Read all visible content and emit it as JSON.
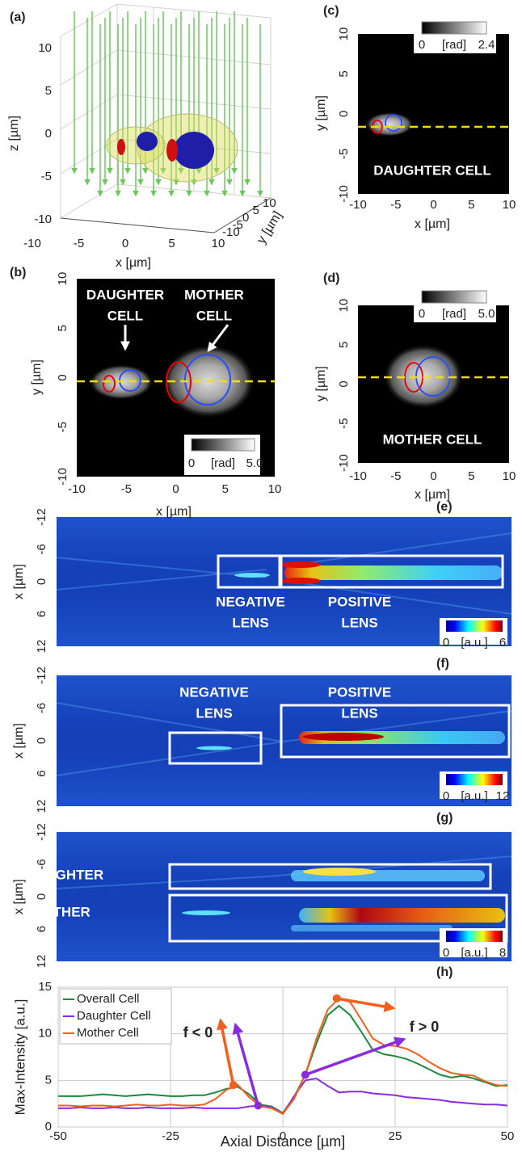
{
  "panels": [
    {
      "label": "(a)",
      "xlabel": "x [µm]",
      "ylabel": "y [µm]",
      "zlabel": "z [µm]",
      "xticks": [
        -10,
        -5,
        0,
        5,
        10
      ],
      "yticks": [
        -10,
        -5,
        0,
        5,
        10
      ],
      "zticks": [
        -10,
        -5,
        0,
        5,
        10
      ]
    },
    {
      "label": "(b)",
      "xlabel": "x [µm]",
      "ylabel": "y [µm]",
      "xticks": [
        -10,
        -5,
        0,
        5,
        10
      ],
      "yticks": [
        -10,
        -5,
        0,
        5,
        10
      ],
      "annotations": [
        "DAUGHTER",
        "CELL",
        "MOTHER",
        "CELL"
      ],
      "colorbar": {
        "ticks": [
          0,
          {
            "value": 5,
            "label": "5.0"
          }
        ],
        "unit": "[rad]"
      }
    },
    {
      "label": "(c)",
      "xlabel": "x [µm]",
      "ylabel": "y [µm]",
      "xticks": [
        -10,
        -5,
        0,
        5,
        10
      ],
      "yticks": [
        -10,
        -5,
        0,
        5,
        10
      ],
      "annotations": [
        "DAUGHTER CELL"
      ],
      "colorbar": {
        "ticks": [
          0,
          2.4
        ],
        "unit": "[rad]"
      }
    },
    {
      "label": "(d)",
      "xlabel": "x [µm]",
      "ylabel": "y [µm]",
      "xticks": [
        -10,
        -5,
        0,
        5,
        10
      ],
      "yticks": [
        -10,
        -5,
        0,
        5,
        10
      ],
      "annotations": [
        "MOTHER CELL"
      ],
      "colorbar": {
        "ticks": [
          0,
          {
            "value": 5,
            "label": "5.0"
          }
        ],
        "unit": "[rad]"
      }
    },
    {
      "label": "(e)",
      "ylabel": "x [µm]",
      "yticks": [
        -12,
        -6,
        0,
        6,
        12
      ],
      "annotations": [
        "NEGATIVE",
        "LENS",
        "POSITIVE",
        "LENS"
      ],
      "colorbar": {
        "ticks": [
          0,
          6
        ],
        "unit": "[a.u.]"
      }
    },
    {
      "label": "(f)",
      "ylabel": "x [µm]",
      "yticks": [
        -12,
        -6,
        0,
        6,
        12
      ],
      "annotations": [
        "NEGATIVE",
        "LENS",
        "POSITIVE",
        "LENS"
      ],
      "colorbar": {
        "ticks": [
          0,
          12
        ],
        "unit": "[a.u.]"
      }
    },
    {
      "label": "(g)",
      "ylabel": "x [µm]",
      "yticks": [
        -12,
        -6,
        0,
        6,
        12
      ],
      "annotations": [
        "DAUGHTER",
        "MOTHER"
      ],
      "colorbar": {
        "ticks": [
          0,
          8
        ],
        "unit": "[a.u.]"
      }
    }
  ],
  "chart_data": {
    "type": "line",
    "panel_label": "(h)",
    "xlabel": "Axial Distance [µm]",
    "ylabel": "Max-Intensity [a.u.]",
    "x": [
      -50,
      -47.5,
      -45,
      -42.5,
      -40,
      -37.5,
      -35,
      -32.5,
      -30,
      -27.5,
      -25,
      -22.5,
      -20,
      -17.5,
      -15,
      -12.5,
      -10,
      -7.5,
      -5,
      -2.5,
      0,
      2.5,
      5,
      7.5,
      10,
      12.5,
      15,
      17.5,
      20,
      22.5,
      25,
      27.5,
      30,
      32.5,
      35,
      37.5,
      40,
      42.5,
      45,
      47.5,
      50
    ],
    "series": [
      {
        "name": "Overall Cell",
        "color": "#1a8a3a",
        "values": [
          3.3,
          3.3,
          3.3,
          3.4,
          3.5,
          3.4,
          3.3,
          3.4,
          3.5,
          3.4,
          3.3,
          3.3,
          3.4,
          3.4,
          3.7,
          4.1,
          4.3,
          3.5,
          2.4,
          2.2,
          1.5,
          3.2,
          5.6,
          9,
          12,
          13,
          12,
          10.2,
          8.3,
          7.8,
          7.6,
          7.3,
          6.8,
          6.2,
          5.6,
          5.3,
          5.5,
          5.2,
          4.8,
          4.4,
          4.5
        ]
      },
      {
        "name": "Daughter Cell",
        "color": "#8a2be2",
        "values": [
          2,
          2,
          2.1,
          2,
          2,
          2.1,
          2,
          2,
          2.1,
          2,
          2,
          2,
          2.1,
          2,
          2,
          2,
          2,
          2.2,
          2.3,
          2.1,
          1.4,
          3.3,
          5,
          5.2,
          4.4,
          3.7,
          3.8,
          3.8,
          3.6,
          3.5,
          3.4,
          3.2,
          3.1,
          3,
          2.9,
          2.7,
          2.6,
          2.5,
          2.4,
          2.4,
          2.3
        ]
      },
      {
        "name": "Mother Cell",
        "color": "#f06020",
        "values": [
          2.3,
          2.3,
          2.2,
          2.3,
          2.3,
          2.2,
          2.3,
          2.4,
          2.3,
          2.3,
          2.4,
          2.3,
          2.3,
          2.4,
          3,
          4,
          4.5,
          3.2,
          2.2,
          2,
          1.4,
          3,
          5.6,
          9.5,
          12.6,
          13.8,
          13.4,
          11.5,
          9.5,
          8.8,
          8.7,
          8.4,
          7.8,
          7,
          6.3,
          5.8,
          5.6,
          5.5,
          4.9,
          4.5,
          4.4
        ]
      }
    ],
    "xlim": [
      -50,
      50
    ],
    "ylim": [
      0,
      15
    ],
    "xticks": [
      -50,
      -25,
      0,
      25,
      50
    ],
    "yticks": [
      0,
      5,
      10,
      15
    ],
    "grid": true,
    "legend": "upper left",
    "annotations": [
      "f < 0",
      "f > 0"
    ],
    "points": [
      {
        "x": -11,
        "y": 4.5,
        "color": "#f06020"
      },
      {
        "x": -5.5,
        "y": 2.3,
        "color": "#8a2be2"
      },
      {
        "x": 5,
        "y": 5.6,
        "color": "#8a2be2"
      },
      {
        "x": 12,
        "y": 13.8,
        "color": "#f06020"
      }
    ]
  }
}
